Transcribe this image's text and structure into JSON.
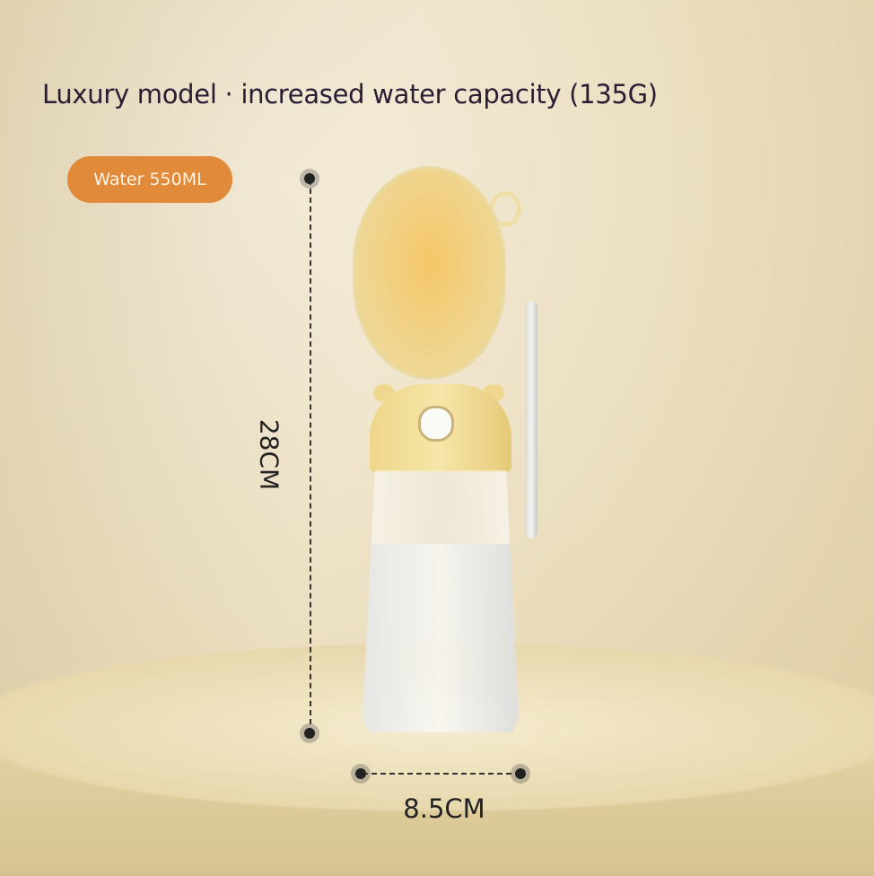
{
  "title": "Luxury model · increased water capacity (135G)",
  "badge": "Water 550ML",
  "dimensions": {
    "height": "28CM",
    "width": "8.5CM"
  },
  "colors": {
    "badge": "#e08a3a",
    "bottle_cap": "#f0d590",
    "background": "#ece0c3"
  }
}
